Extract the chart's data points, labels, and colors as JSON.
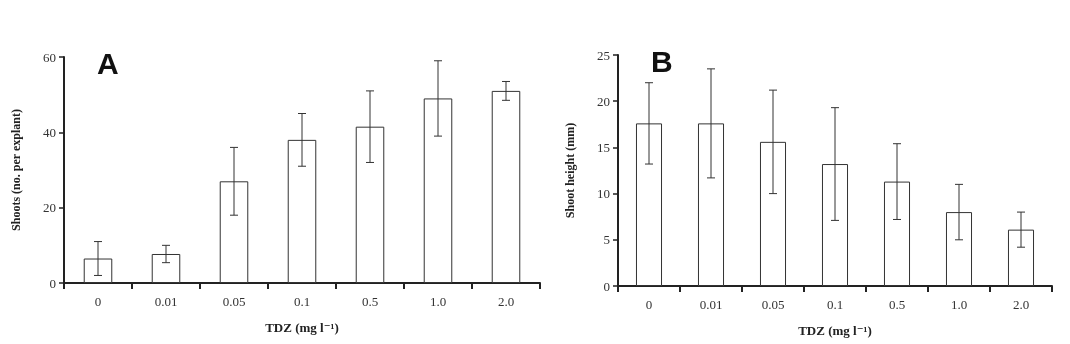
{
  "chart_data": [
    {
      "type": "bar",
      "title": "A",
      "xlabel": "TDZ (mg l⁻¹)",
      "ylabel": "Shoots (no. per explant)",
      "categories": [
        "0",
        "0.01",
        "0.05",
        "0.1",
        "0.5",
        "1.0",
        "2.0"
      ],
      "color": "#ffffff",
      "values": [
        6.5,
        7.7,
        27,
        38,
        41.5,
        49,
        51
      ],
      "errors": [
        4.5,
        2.3,
        9,
        7,
        9.5,
        10,
        2.5
      ],
      "ylim": [
        0,
        60
      ],
      "yticks": [
        0,
        20,
        40,
        60
      ],
      "grid": false
    },
    {
      "type": "bar",
      "title": "B",
      "xlabel": "TDZ (mg l⁻¹)",
      "ylabel": "Shoot height (mm)",
      "categories": [
        "0",
        "0.01",
        "0.05",
        "0.1",
        "0.5",
        "1.0",
        "2.0"
      ],
      "color": "#ffffff",
      "values": [
        17.6,
        17.6,
        15.6,
        13.2,
        11.3,
        8,
        6.1
      ],
      "errors": [
        4.4,
        5.9,
        5.6,
        6.1,
        4.1,
        3,
        1.9
      ],
      "ylim": [
        0,
        25
      ],
      "yticks": [
        0,
        5,
        10,
        15,
        20,
        25
      ],
      "grid": false
    }
  ]
}
